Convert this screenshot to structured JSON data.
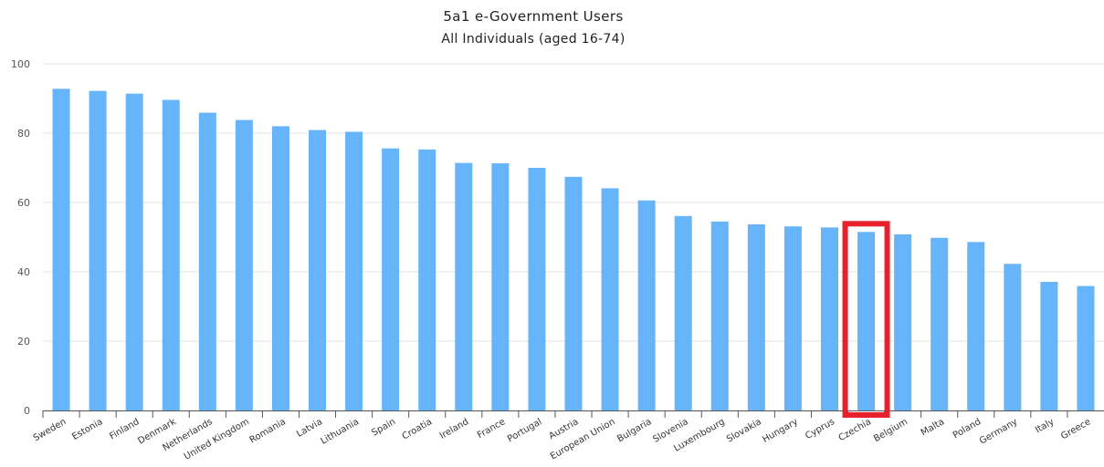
{
  "chart_data": {
    "type": "bar",
    "title": "5a1 e-Government Users",
    "subtitle": "All Individuals (aged 16-74)",
    "xlabel": "",
    "ylabel": "",
    "ylim": [
      0,
      100
    ],
    "yticks": [
      0,
      20,
      40,
      60,
      80,
      100
    ],
    "grid": true,
    "bar_color": "#66b5fa",
    "highlight_color": "#e8202b",
    "highlight_category": "Czechia",
    "categories": [
      "Sweden",
      "Estonia",
      "Finland",
      "Denmark",
      "Netherlands",
      "United Kingdom",
      "Romania",
      "Latvia",
      "Lithuania",
      "Spain",
      "Croatia",
      "Ireland",
      "France",
      "Portugal",
      "Austria",
      "European Union",
      "Bulgaria",
      "Slovenia",
      "Luxembourg",
      "Slovakia",
      "Hungary",
      "Cyprus",
      "Czechia",
      "Belgium",
      "Malta",
      "Poland",
      "Germany",
      "Italy",
      "Greece"
    ],
    "values": [
      92.8,
      92.2,
      91.4,
      89.6,
      85.9,
      83.8,
      82.0,
      80.9,
      80.4,
      75.6,
      75.3,
      71.4,
      71.3,
      70.0,
      67.4,
      64.1,
      60.6,
      56.1,
      54.5,
      53.7,
      53.1,
      52.8,
      51.5,
      50.8,
      49.8,
      48.6,
      42.3,
      37.1,
      35.9
    ]
  }
}
